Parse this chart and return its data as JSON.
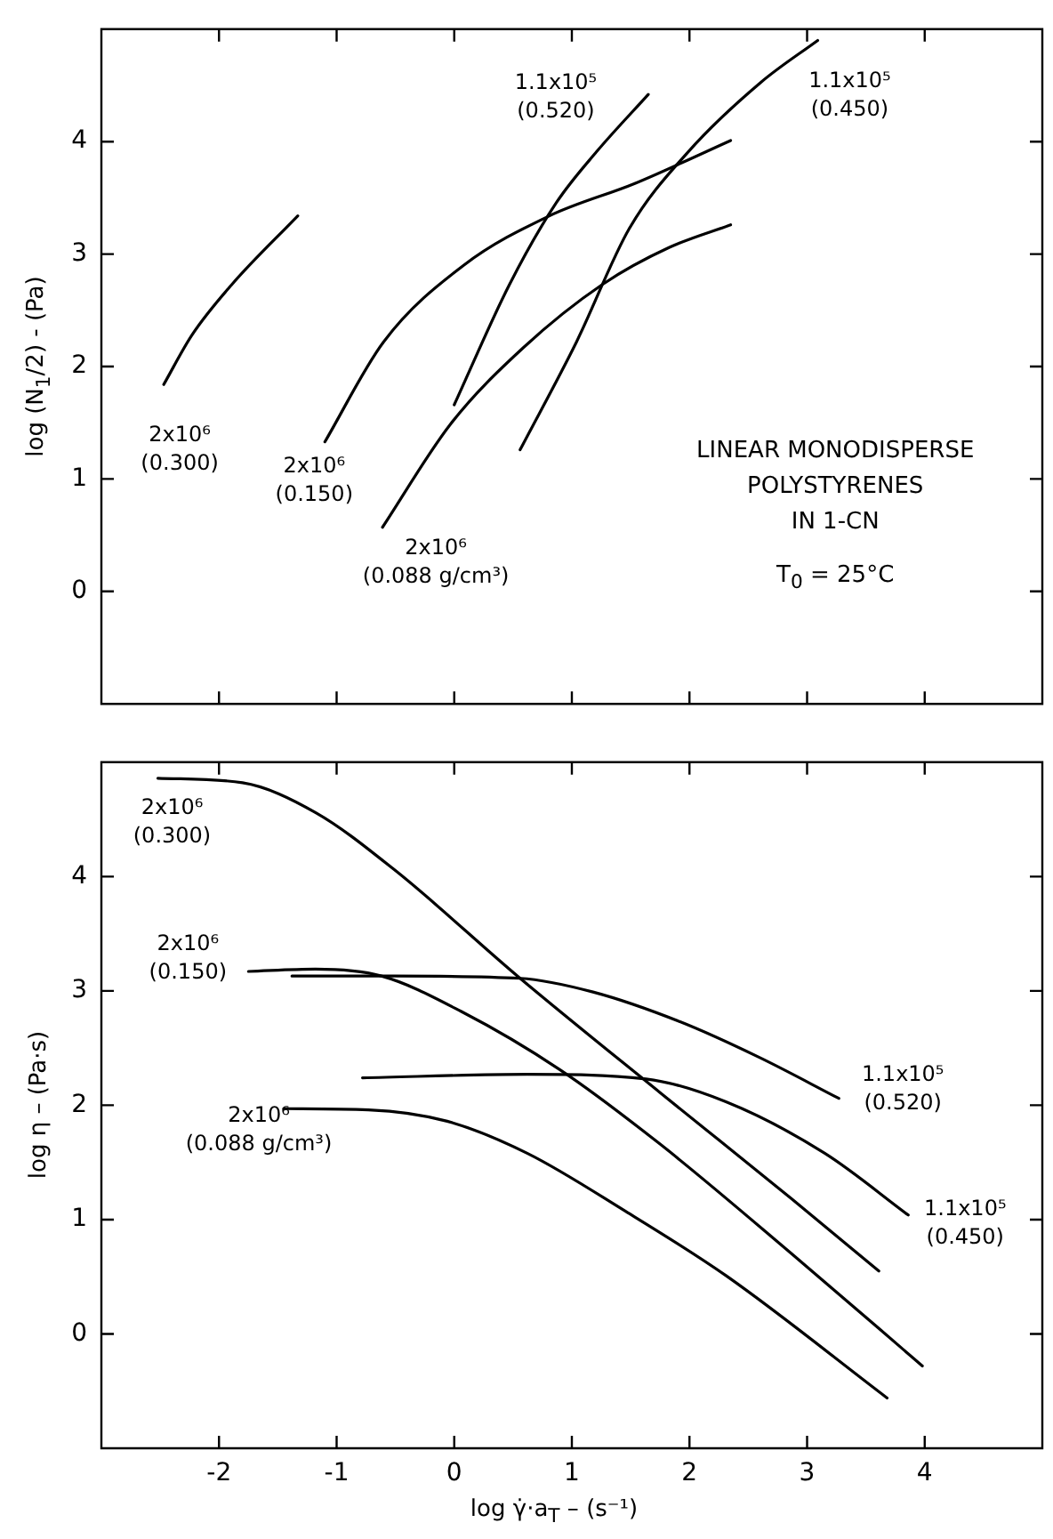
{
  "chart_data": [
    {
      "type": "line",
      "ylabel": "log (N$_{1}$/2) - (Pa)",
      "xlim": [
        -3,
        5
      ],
      "ylim": [
        -1,
        5
      ],
      "xticks": [
        -2,
        -1,
        0,
        1,
        2,
        3,
        4
      ],
      "yticks": [
        0,
        1,
        2,
        3,
        4
      ],
      "tick_labels": "y",
      "grid": false,
      "marker": "none",
      "line_style": "solid",
      "series": [
        {
          "name": "2x10⁶\n(0.300)",
          "color": "#000000",
          "x": [
            -2.47,
            -2.23,
            -1.89,
            -1.33
          ],
          "values": [
            1.84,
            2.28,
            2.73,
            3.34
          ]
        },
        {
          "name": "2x10⁶\n(0.150)",
          "color": "#000000",
          "x": [
            -1.1,
            -0.6,
            0.08,
            0.81,
            1.54,
            2.35
          ],
          "values": [
            1.33,
            2.22,
            2.9,
            3.34,
            3.63,
            4.01
          ]
        },
        {
          "name": "2x10⁶\n(0.088 g/cm³)",
          "color": "#000000",
          "x": [
            -0.61,
            -0.03,
            0.59,
            1.26,
            1.83,
            2.35
          ],
          "values": [
            0.57,
            1.49,
            2.17,
            2.73,
            3.06,
            3.26
          ]
        },
        {
          "name": "1.1x10⁵\n(0.520)",
          "color": "#000000",
          "x": [
            0,
            0.47,
            0.87,
            1.21,
            1.65
          ],
          "values": [
            1.66,
            2.73,
            3.46,
            3.91,
            4.42
          ]
        },
        {
          "name": "1.1x10⁵\n(0.450)",
          "color": "#000000",
          "x": [
            0.56,
            1.04,
            1.49,
            1.99,
            2.61,
            3.09
          ],
          "values": [
            1.26,
            2.22,
            3.23,
            3.91,
            4.53,
            4.9
          ]
        }
      ],
      "annotations": [
        "LINEAR MONODISPERSE\nPOLYSTYRENES\nIN 1-CN",
        "T$_{0}$ = 25°C"
      ]
    },
    {
      "type": "line",
      "xlabel": "log γ̇·a$_{T}$ – (s⁻¹)",
      "ylabel": "log η – (Pa·s)",
      "xlim": [
        -3,
        5
      ],
      "ylim": [
        -1,
        5
      ],
      "xticks": [
        -2,
        -1,
        0,
        1,
        2,
        3,
        4
      ],
      "yticks": [
        0,
        1,
        2,
        3,
        4
      ],
      "grid": false,
      "marker": "none",
      "line_style": "solid",
      "series": [
        {
          "name": "2x10⁶\n(0.300)",
          "color": "#000000",
          "x": [
            -2.52,
            -1.8,
            -1.18,
            -0.51,
            0.56,
            1.75,
            2.87,
            3.61
          ],
          "values": [
            4.86,
            4.82,
            4.56,
            4.06,
            3.11,
            2.11,
            1.18,
            0.55
          ]
        },
        {
          "name": "2x10⁶\n(0.150)",
          "color": "#000000",
          "x": [
            -1.75,
            -1.18,
            -0.62,
            0.06,
            0.9,
            1.75,
            2.87,
            3.98
          ],
          "values": [
            3.17,
            3.19,
            3.13,
            2.82,
            2.31,
            1.66,
            0.7,
            -0.28
          ]
        },
        {
          "name": "2x10⁶\n(0.088 g/cm³)",
          "color": "#000000",
          "x": [
            -1.45,
            -0.73,
            -0.06,
            0.62,
            1.46,
            2.31,
            3.68
          ],
          "values": [
            1.97,
            1.96,
            1.86,
            1.58,
            1.07,
            0.51,
            -0.56
          ]
        },
        {
          "name": "1.1x10⁵\n(0.520)",
          "color": "#000000",
          "x": [
            -1.38,
            -0.51,
            0.56,
            1.18,
            1.92,
            2.59,
            3.27
          ],
          "values": [
            3.13,
            3.13,
            3.11,
            2.99,
            2.73,
            2.42,
            2.06
          ]
        },
        {
          "name": "1.1x10⁵\n(0.450)",
          "color": "#000000",
          "x": [
            -0.78,
            0.62,
            1.63,
            2.31,
            3.15,
            3.86
          ],
          "values": [
            2.24,
            2.27,
            2.23,
            2.03,
            1.58,
            1.04
          ]
        }
      ]
    }
  ]
}
